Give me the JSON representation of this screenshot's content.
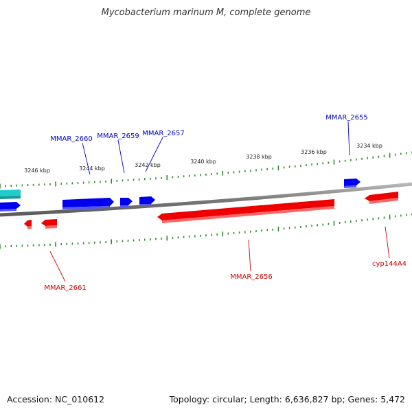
{
  "header": {
    "title": "Mycobacterium marinum M, complete genome"
  },
  "footer": {
    "accession": "Accession: NC_010612",
    "summary": "Topology: circular; Length: 6,636,827 bp; Genes: 5,472"
  },
  "colors": {
    "forward_gene": "#0000ee",
    "reverse_gene": "#ee0000",
    "other_gene": "#22cccc",
    "backbone": "#8a8a8a",
    "tick": "#2e8b2e",
    "forward_label": "#0000cc",
    "reverse_label": "#cc0000"
  },
  "chart_data": {
    "type": "genome-map",
    "tick_labels": [
      "3246 kbp",
      "3244 kbp",
      "3242 kbp",
      "3240 kbp",
      "3238 kbp",
      "3236 kbp",
      "3234 kbp"
    ],
    "genes": [
      {
        "id": "g_cyan",
        "strand": "other"
      },
      {
        "id": "g_blue_left",
        "strand": "forward"
      },
      {
        "id": "MMAR_2660",
        "label": "MMAR_2660",
        "strand": "forward"
      },
      {
        "id": "MMAR_2659",
        "label": "MMAR_2659",
        "strand": "forward"
      },
      {
        "id": "MMAR_2657",
        "label": "MMAR_2657",
        "strand": "forward"
      },
      {
        "id": "MMAR_2655",
        "label": "MMAR_2655",
        "strand": "forward"
      },
      {
        "id": "g_red_small",
        "strand": "reverse"
      },
      {
        "id": "MMAR_2661",
        "label": "MMAR_2661",
        "strand": "reverse"
      },
      {
        "id": "MMAR_2656",
        "label": "MMAR_2656",
        "strand": "reverse"
      },
      {
        "id": "cyp144A4",
        "label": "cyp144A4",
        "strand": "reverse"
      }
    ]
  }
}
